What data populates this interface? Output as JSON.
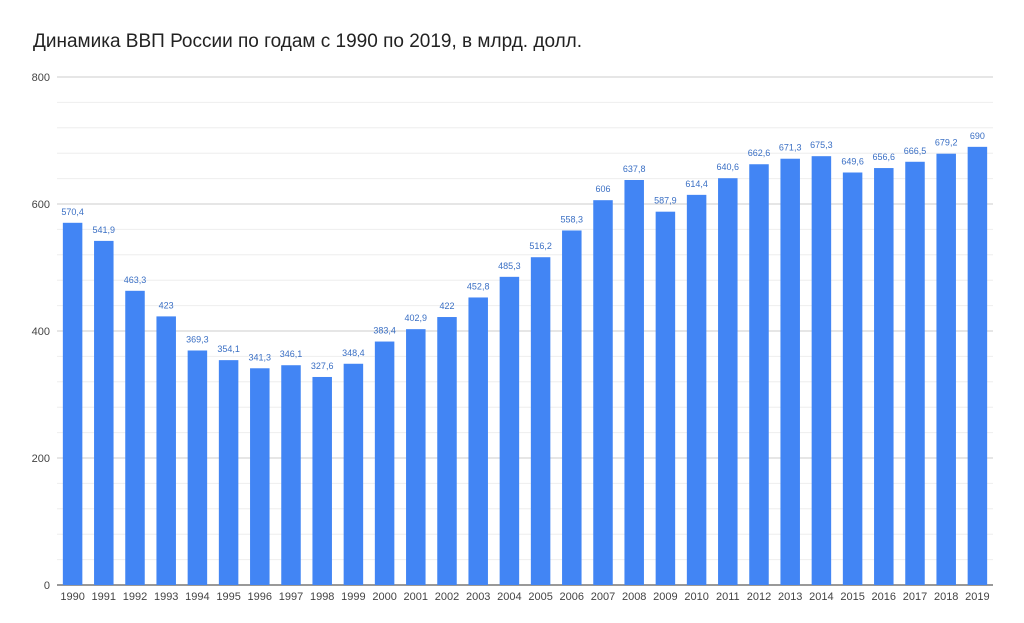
{
  "chart_data": {
    "type": "bar",
    "title": "Динамика ВВП России по годам с 1990 по 2019, в млрд. долл.",
    "xlabel": "",
    "ylabel": "",
    "ylim": [
      0,
      800
    ],
    "yticks": [
      0,
      200,
      400,
      600,
      800
    ],
    "grid": true,
    "legend": "none",
    "bar_color": "#4285f4",
    "categories": [
      "1990",
      "1991",
      "1992",
      "1993",
      "1994",
      "1995",
      "1996",
      "1997",
      "1998",
      "1999",
      "2000",
      "2001",
      "2002",
      "2003",
      "2004",
      "2005",
      "2006",
      "2007",
      "2008",
      "2009",
      "2010",
      "2011",
      "2012",
      "2013",
      "2014",
      "2015",
      "2016",
      "2017",
      "2018",
      "2019"
    ],
    "values": [
      570.4,
      541.9,
      463.3,
      423,
      369.3,
      354.1,
      341.3,
      346.1,
      327.6,
      348.4,
      383.4,
      402.9,
      422,
      452.8,
      485.3,
      516.2,
      558.3,
      606,
      637.8,
      587.9,
      614.4,
      640.6,
      662.6,
      671.3,
      675.3,
      649.6,
      656.6,
      666.5,
      679.2,
      690
    ],
    "data_labels": [
      "570,4",
      "541,9",
      "463,3",
      "423",
      "369,3",
      "354,1",
      "341,3",
      "346,1",
      "327,6",
      "348,4",
      "383,4",
      "402,9",
      "422",
      "452,8",
      "485,3",
      "516,2",
      "558,3",
      "606",
      "637,8",
      "587,9",
      "614,4",
      "640,6",
      "662,6",
      "671,3",
      "675,3",
      "649,6",
      "656,6",
      "666,5",
      "679,2",
      "690"
    ]
  }
}
